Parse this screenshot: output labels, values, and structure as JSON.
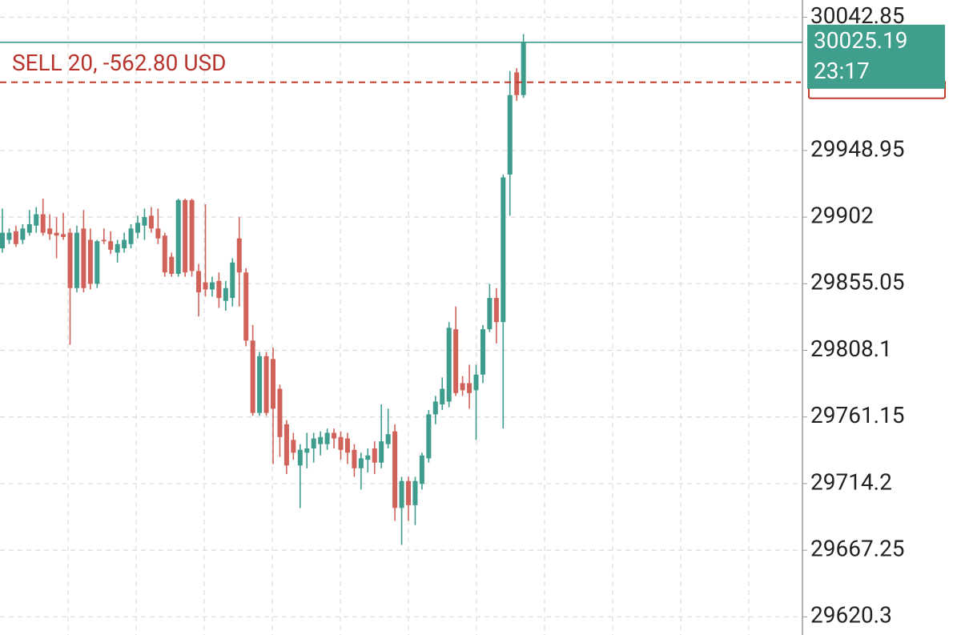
{
  "chart_data": {
    "type": "candlestick",
    "open": [
      29880,
      29886,
      29892,
      29886,
      29891,
      29896,
      29904,
      29894,
      29891,
      29890,
      29891,
      29852,
      29894,
      29886,
      29855,
      29886,
      29885,
      29877,
      29880,
      29883,
      29891,
      29896,
      29903,
      29894,
      29889,
      29874,
      29862,
      29914,
      29914,
      29864,
      29856,
      29851,
      29857,
      29843,
      29845,
      29887,
      29863,
      29815,
      29764,
      29804,
      29802,
      29781,
      29756,
      29745,
      29727,
      29736,
      29739,
      29742,
      29742,
      29750,
      29747,
      29746,
      29738,
      29725,
      29731,
      29739,
      29729,
      29742,
      29751,
      29697,
      29716,
      29699,
      29714,
      29732,
      29763,
      29770,
      29772,
      29823,
      29785,
      29785,
      29780,
      29791,
      29823,
      29845,
      29828,
      29932,
      30004,
      29988
    ],
    "high": [
      29908,
      29894,
      29896,
      29897,
      29907,
      29909,
      29915,
      29904,
      29902,
      29905,
      29894,
      29896,
      29907,
      29894,
      29886,
      29894,
      29892,
      29886,
      29891,
      29897,
      29903,
      29908,
      29909,
      29908,
      29891,
      29877,
      29915,
      29915,
      29915,
      29869,
      29911,
      29860,
      29863,
      29857,
      29873,
      29902,
      29866,
      29826,
      29807,
      29807,
      29810,
      29784,
      29759,
      29750,
      29742,
      29750,
      29750,
      29751,
      29753,
      29753,
      29751,
      29750,
      29742,
      29736,
      29739,
      29744,
      29770,
      29767,
      29756,
      29719,
      29719,
      29719,
      29736,
      29766,
      29776,
      29789,
      29828,
      29839,
      29790,
      29798,
      29798,
      29826,
      29855,
      29852,
      29932,
      30005,
      30007,
      30031
    ],
    "low": [
      29877,
      29883,
      29881,
      29883,
      29889,
      29891,
      29889,
      29886,
      29873,
      29886,
      29812,
      29849,
      29849,
      29851,
      29852,
      29883,
      29876,
      29870,
      29877,
      29880,
      29887,
      29886,
      29891,
      29883,
      29860,
      29860,
      29860,
      29860,
      29860,
      29832,
      29846,
      29846,
      29838,
      29836,
      29839,
      29839,
      29811,
      29762,
      29762,
      29762,
      29728,
      29733,
      29721,
      29731,
      29697,
      29725,
      29729,
      29734,
      29738,
      29739,
      29731,
      29728,
      29719,
      29710,
      29722,
      29721,
      29725,
      29739,
      29688,
      29671,
      29688,
      29685,
      29710,
      29729,
      29756,
      29766,
      29768,
      29776,
      29776,
      29767,
      29745,
      29785,
      29821,
      29813,
      29753,
      29903,
      29984,
      29986
    ],
    "close": [
      29891,
      29891,
      29883,
      29894,
      29897,
      29904,
      29891,
      29890,
      29889,
      29888,
      29852,
      29891,
      29852,
      29855,
      29885,
      29885,
      29879,
      29883,
      29886,
      29894,
      29898,
      29902,
      29894,
      29887,
      29863,
      29862,
      29914,
      29863,
      29864,
      29849,
      29851,
      29856,
      29845,
      29852,
      29870,
      29863,
      29815,
      29764,
      29804,
      29764,
      29767,
      29747,
      29727,
      29736,
      29738,
      29739,
      29746,
      29747,
      29750,
      29746,
      29738,
      29736,
      29725,
      29732,
      29734,
      29729,
      29744,
      29749,
      29697,
      29716,
      29699,
      29716,
      29734,
      29763,
      29772,
      29781,
      29824,
      29778,
      29780,
      29778,
      29791,
      29823,
      29845,
      29828,
      29930,
      29988,
      29988,
      30025.19
    ],
    "up_color": "#3d9c8c",
    "down_color": "#d1625a",
    "ylim": [
      29607.5,
      30055
    ],
    "yticks": [
      30042.85,
      29948.95,
      29902.0,
      29855.05,
      29808.1,
      29761.15,
      29714.2,
      29667.25,
      29620.3
    ],
    "grid": true,
    "current_price": 30025.19,
    "time_left": "23:17",
    "order_line": {
      "label": "SELL 20,  -562.80 USD",
      "price": 29997
    }
  }
}
